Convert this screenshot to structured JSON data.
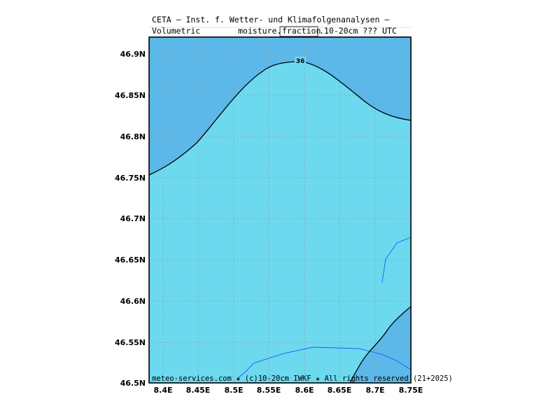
{
  "header": {
    "title": "CETA — Inst. f. Wetter- und Klimafolgenanalysen —",
    "param_left": "Volumetric",
    "param_mid": "moisture.",
    "param_box": "fraction",
    "param_right": ".10-20cm  ???  UTC"
  },
  "footer": {
    "credit": "meteo-services.com ★ (c)10-20cm IWKF ★ All rights reserved (21+2025)"
  },
  "contour_label": "36",
  "colors": {
    "low_fill": "#6cd9ef",
    "high_fill": "#5bb8e8",
    "contour_line": "#000000",
    "river": "#1c5cf0",
    "grid": "#9a9a9a"
  },
  "axes": {
    "lon_ticks": [
      "8.4E",
      "8.45E",
      "8.5E",
      "8.55E",
      "8.6E",
      "8.65E",
      "8.7E",
      "8.75E"
    ],
    "lat_ticks": [
      "46.9N",
      "46.85N",
      "46.8N",
      "46.75N",
      "46.7N",
      "46.65N",
      "46.6N",
      "46.55N",
      "46.5N"
    ]
  }
}
